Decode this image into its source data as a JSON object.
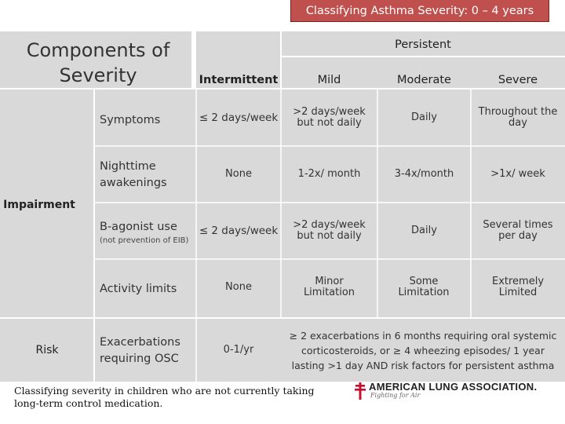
{
  "banner_title": "Classifying Asthma Severity: 0 – 4 years",
  "header": {
    "components": "Components of Severity",
    "persistent": "Persistent",
    "intermittent": "Intermittent",
    "mild": "Mild",
    "moderate": "Moderate",
    "severe": "Severe"
  },
  "impairment_label": "Impairment",
  "risk_label": "Risk",
  "rows": {
    "symptoms": {
      "label": "Symptoms",
      "intermittent": "≤ 2 days/week",
      "mild": ">2 days/week but not daily",
      "moderate": "Daily",
      "severe": "Throughout the day"
    },
    "nighttime": {
      "label": "Nighttime awakenings",
      "intermittent": "None",
      "mild": "1-2x/ month",
      "moderate": "3-4x/month",
      "severe": ">1x/ week"
    },
    "agonist": {
      "label": "Β-agonist use",
      "note": "(not prevention of EIB)",
      "intermittent": "≤ 2 days/week",
      "mild": ">2 days/week but not daily",
      "moderate": "Daily",
      "severe": "Several times per day"
    },
    "activity": {
      "label": "Activity limits",
      "intermittent": "None",
      "mild": "Minor Limitation",
      "moderate": "Some Limitation",
      "severe": "Extremely Limited"
    },
    "exacerbations": {
      "label": "Exacerbations requiring OSC",
      "intermittent": "0-1/yr",
      "persistent": "≥ 2 exacerbations in 6 months requiring oral systemic corticosteroids, or ≥ 4 wheezing episodes/ 1 year lasting >1 day AND risk factors for persistent asthma"
    }
  },
  "footer_note": "Classifying severity in children who are not currently taking long-term control medication.",
  "logo": {
    "name": "AMERICAN LUNG ASSOCIATION.",
    "tagline": "Fighting for Air",
    "accent_color": "#c8102e"
  },
  "colors": {
    "banner": "#c0504d",
    "panel": "#d9d9d9"
  }
}
